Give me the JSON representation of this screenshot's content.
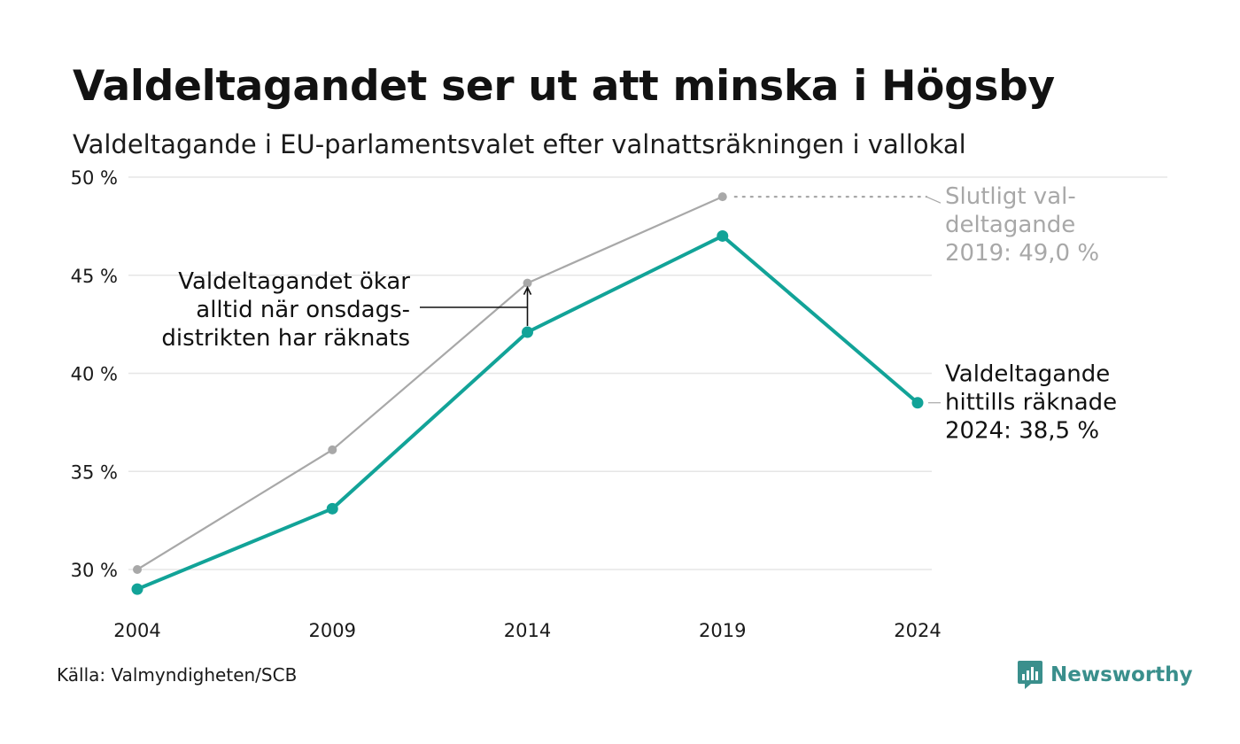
{
  "title": "Valdeltagandet ser ut att minska i Högsby",
  "subtitle": "Valdeltagande i EU-parlamentsvalet efter valnattsräkningen i vallokal",
  "source": "Källa: Valmyndigheten/SCB",
  "brand": {
    "name": "Newsworthy",
    "color": "#3a8f8c",
    "icon": "newsworthy-logo-icon"
  },
  "colors": {
    "accent": "#12a398",
    "reference": "#a8a8a8",
    "grid": "#e6e6e6",
    "text": "#111111"
  },
  "chart_data": {
    "type": "line",
    "x": [
      2004,
      2009,
      2014,
      2019,
      2024
    ],
    "x_tick_labels": [
      "2004",
      "2009",
      "2014",
      "2019",
      "2024"
    ],
    "y_ticks": [
      30,
      35,
      40,
      45,
      50
    ],
    "y_tick_labels": [
      "30 %",
      "35 %",
      "40 %",
      "45 %",
      "50 %"
    ],
    "ylim": [
      28.7,
      50
    ],
    "grid": true,
    "series": [
      {
        "key": "final",
        "color": "#a8a8a8",
        "values": [
          30.0,
          36.1,
          44.6,
          49.0,
          null
        ]
      },
      {
        "key": "counted",
        "color": "#12a398",
        "values": [
          29.0,
          33.1,
          42.1,
          47.0,
          38.5
        ]
      }
    ],
    "annotations": {
      "wednesday": [
        "Valdeltagandet ökar",
        "alltid när onsdags-",
        "distrikten har räknats"
      ],
      "final_2019": [
        "Slutligt val-",
        "deltagande",
        "2019: 49,0 %"
      ],
      "counted_2024": [
        "Valdeltagande",
        "hittills räknade",
        "2024: 38,5 %"
      ]
    }
  }
}
